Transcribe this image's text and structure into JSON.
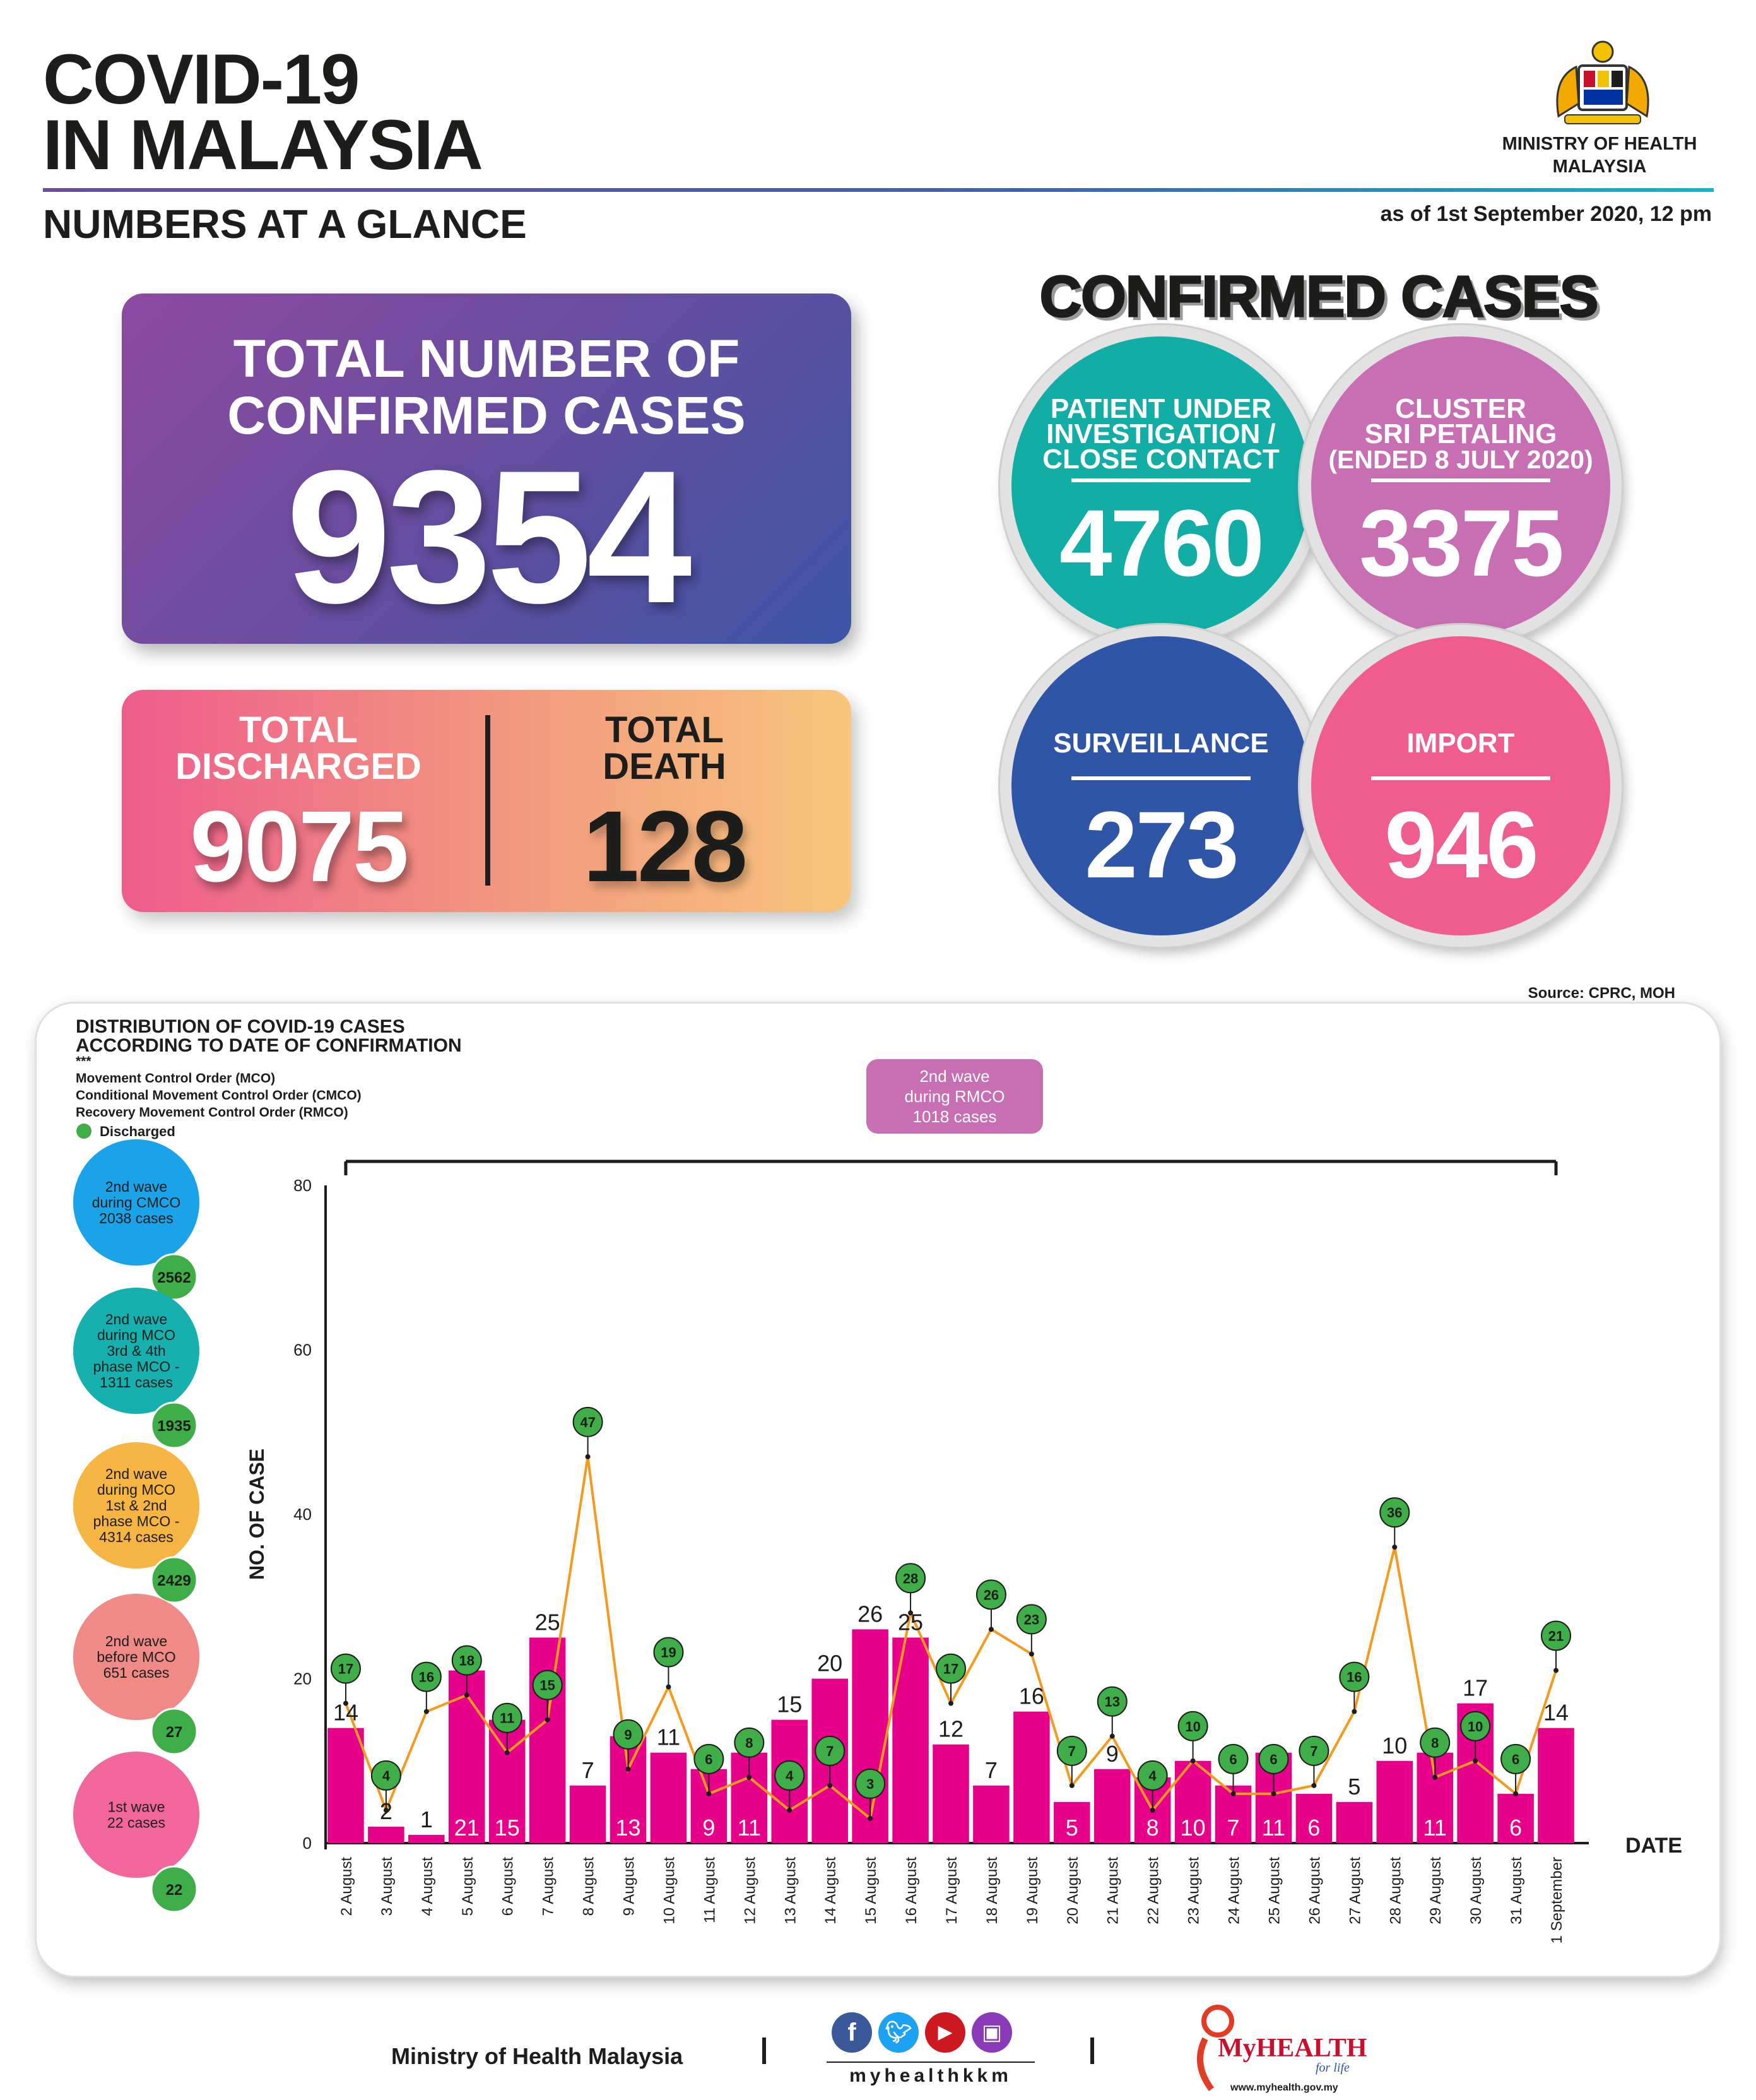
{
  "header": {
    "title_line1": "COVID-19",
    "title_line2": "IN MALAYSIA",
    "subtitle": "NUMBERS AT A GLANCE",
    "ministry_line1": "MINISTRY OF HEALTH",
    "ministry_line2": "MALAYSIA",
    "as_of": "as of 1st September 2020, 12 pm"
  },
  "total": {
    "label_line1": "TOTAL NUMBER OF",
    "label_line2": "CONFIRMED CASES",
    "value": "9354"
  },
  "discharged": {
    "label_line1": "TOTAL",
    "label_line2": "DISCHARGED",
    "value": "9075"
  },
  "death": {
    "label_line1": "TOTAL",
    "label_line2": "DEATH",
    "value": "128"
  },
  "confirmed": {
    "title": "CONFIRMED CASES",
    "pui": {
      "label_line1": "PATIENT UNDER",
      "label_line2": "INVESTIGATION /",
      "label_line3": "CLOSE CONTACT",
      "value": "4760",
      "color": "#12aea6"
    },
    "cluster": {
      "label_line1": "CLUSTER",
      "label_line2": "SRI PETALING",
      "label_line3": "(ENDED 8 JULY 2020)",
      "value": "3375",
      "color": "#c86fb3"
    },
    "surveillance": {
      "label": "SURVEILLANCE",
      "value": "273",
      "color": "#2f56a6"
    },
    "import": {
      "label": "IMPORT",
      "value": "946",
      "color": "#ef5d8e"
    }
  },
  "source": "Source: CPRC, MOH",
  "chart_data": {
    "type": "bar",
    "title_line1": "DISTRIBUTION OF COVID-19 CASES",
    "title_line2": "ACCORDING TO DATE OF CONFIRMATION",
    "legend_lines": [
      "***",
      "Movement Control Order (MCO)",
      "Conditional Movement Control Order (CMCO)",
      "Recovery Movement Control Order (RMCO)"
    ],
    "discharged_legend": "Discharged",
    "ylabel": "NO. OF CASE",
    "xlabel": "DATE",
    "ylim": [
      0,
      80
    ],
    "yticks": [
      0,
      20,
      40,
      60,
      80
    ],
    "categories": [
      "2 August",
      "3 August",
      "4 August",
      "5 August",
      "6 August",
      "7 August",
      "8 August",
      "9 August",
      "10 August",
      "11 August",
      "12 August",
      "13 August",
      "14 August",
      "15 August",
      "16 August",
      "17 August",
      "18 August",
      "19 August",
      "20 August",
      "21 August",
      "22 August",
      "23 August",
      "24 August",
      "25 August",
      "26 August",
      "27 August",
      "28 August",
      "29 August",
      "30 August",
      "31 August",
      "1 September"
    ],
    "series": [
      {
        "values": [
          14,
          2,
          1,
          21,
          15,
          25,
          7,
          13,
          11,
          9,
          11,
          15,
          20,
          26,
          25,
          12,
          7,
          16,
          5,
          9,
          8,
          10,
          7,
          11,
          6,
          5,
          10,
          11,
          17,
          6,
          14
        ]
      },
      {
        "name": "Discharged",
        "values": [
          17,
          4,
          16,
          18,
          11,
          15,
          47,
          9,
          19,
          6,
          8,
          4,
          7,
          3,
          28,
          17,
          26,
          23,
          7,
          13,
          4,
          10,
          6,
          6,
          7,
          16,
          36,
          8,
          10,
          6,
          21
        ]
      }
    ],
    "rmco_box": {
      "line1": "2nd wave",
      "line2": "during RMCO",
      "line3": "1018 cases"
    },
    "wave_summaries": [
      {
        "line1": "2nd wave",
        "line2": "during CMCO",
        "line3": "2038 cases",
        "line4": "",
        "line5": "",
        "discharged": "2562",
        "color": "#1aa3e8"
      },
      {
        "line1": "2nd wave",
        "line2": "during MCO",
        "line3": "3rd & 4th",
        "line4": "phase MCO -",
        "line5": "1311 cases",
        "discharged": "1935",
        "color": "#16b0ae"
      },
      {
        "line1": "2nd wave",
        "line2": "during MCO",
        "line3": "1st & 2nd",
        "line4": "phase MCO -",
        "line5": "4314 cases",
        "discharged": "2429",
        "color": "#f6b443"
      },
      {
        "line1": "2nd wave",
        "line2": "before MCO",
        "line3": "651 cases",
        "line4": "",
        "line5": "",
        "discharged": "27",
        "color": "#f08a86"
      },
      {
        "line1": "1st wave",
        "line2": "22 cases",
        "line3": "",
        "line4": "",
        "line5": "",
        "discharged": "22",
        "color": "#f2679b"
      }
    ],
    "colors": {
      "bar": "#e6008a",
      "line": "#f39a1f",
      "marker": "#3fae49"
    }
  },
  "footer": {
    "ministry": "Ministry of Health Malaysia",
    "social_handle": "myhealthkkm",
    "social_icons": [
      "facebook-icon",
      "twitter-icon",
      "youtube-icon",
      "instagram-icon"
    ],
    "myhealth_brand": "MyHEALTH",
    "myhealth_tagline": "for life",
    "myhealth_url": "www.myhealth.gov.my"
  }
}
